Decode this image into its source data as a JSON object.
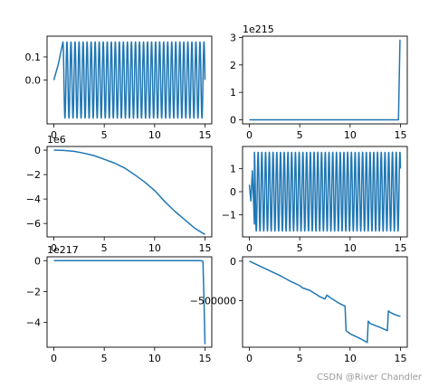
{
  "watermark": "CSDN @River Chandler",
  "colors": {
    "line": "#1f77b4"
  },
  "chart_data": [
    {
      "type": "line",
      "id": "p1",
      "pattern": "oscillation",
      "x_range": [
        0,
        15
      ],
      "amplitude": 0.165,
      "center": 0.0,
      "cycles_per_unit": 2.5,
      "series": [
        {
          "x": [
            0,
            0.45,
            0.9,
            15
          ],
          "y": [
            0.0,
            0.07,
            0.165,
            0.03
          ]
        }
      ],
      "xticks": [
        "0",
        "5",
        "10",
        "15"
      ],
      "xtick_values": [
        0,
        5,
        10,
        15
      ],
      "yticks": [
        "0.0",
        "0.1"
      ],
      "ytick_values": [
        0.0,
        0.1
      ],
      "ylim": [
        -0.19,
        0.19
      ],
      "offset_text": ""
    },
    {
      "type": "line",
      "id": "p2",
      "series": [
        {
          "x": [
            0,
            14.8,
            14.95,
            15.0
          ],
          "y": [
            0,
            0,
            2.9,
            2.9
          ]
        }
      ],
      "xticks": [
        "0",
        "5",
        "10",
        "15"
      ],
      "xtick_values": [
        0,
        5,
        10,
        15
      ],
      "yticks": [
        "0",
        "1",
        "2",
        "3"
      ],
      "ytick_values": [
        0,
        1,
        2,
        3
      ],
      "ylim": [
        -0.15,
        3.05
      ],
      "offset_text": "1e215"
    },
    {
      "type": "line",
      "id": "p3",
      "series": [
        {
          "x": [
            0,
            1,
            2,
            3,
            4,
            5,
            6,
            7,
            8,
            9,
            10,
            11,
            12,
            13,
            14,
            15
          ],
          "y": [
            0,
            -0.02,
            -0.1,
            -0.25,
            -0.45,
            -0.75,
            -1.05,
            -1.45,
            -2.0,
            -2.6,
            -3.3,
            -4.2,
            -5.0,
            -5.7,
            -6.4,
            -6.9
          ]
        }
      ],
      "xticks": [
        "0",
        "5",
        "10",
        "15"
      ],
      "xtick_values": [
        0,
        5,
        10,
        15
      ],
      "yticks": [
        "0",
        "−2",
        "−4",
        "−6"
      ],
      "ytick_values": [
        0,
        -2,
        -4,
        -6
      ],
      "ylim": [
        -7.1,
        0.3
      ],
      "offset_text": "1e6"
    },
    {
      "type": "line",
      "id": "p4",
      "pattern": "oscillation",
      "x_range": [
        0,
        15
      ],
      "amplitude": 1.7,
      "center": 0.0,
      "cycles_per_unit": 2.7,
      "series": [
        {
          "x": [
            0,
            0.15,
            0.3,
            0.5,
            15
          ],
          "y": [
            0.3,
            -0.4,
            0.9,
            -1.4,
            0.3
          ]
        }
      ],
      "xticks": [
        "0",
        "5",
        "10",
        "15"
      ],
      "xtick_values": [
        0,
        5,
        10,
        15
      ],
      "yticks": [
        "−1",
        "0",
        "1"
      ],
      "ytick_values": [
        -1,
        0,
        1
      ],
      "ylim": [
        -1.95,
        1.95
      ],
      "offset_text": ""
    },
    {
      "type": "line",
      "id": "p5",
      "series": [
        {
          "x": [
            0,
            14.6,
            14.8,
            14.9,
            15.0
          ],
          "y": [
            0,
            0,
            -0.05,
            -2.5,
            -5.4
          ]
        }
      ],
      "xticks": [
        "0",
        "5",
        "10",
        "15"
      ],
      "xtick_values": [
        0,
        5,
        10,
        15
      ],
      "yticks": [
        "0",
        "−2",
        "−4"
      ],
      "ytick_values": [
        0,
        -2,
        -4
      ],
      "ylim": [
        -5.6,
        0.25
      ],
      "offset_text": "1e217"
    },
    {
      "type": "line",
      "id": "p6",
      "series": [
        {
          "x": [
            0,
            1,
            2,
            3,
            4,
            5,
            5.3,
            6,
            7,
            7.5,
            7.7,
            8,
            9,
            9.5,
            9.6,
            10,
            11,
            11.7,
            11.8,
            12,
            13,
            13.7,
            13.8,
            14,
            14.5,
            15
          ],
          "y": [
            0,
            -60000,
            -120000,
            -180000,
            -250000,
            -310000,
            -340000,
            -370000,
            -450000,
            -480000,
            -430000,
            -460000,
            -540000,
            -570000,
            -880000,
            -920000,
            -980000,
            -1030000,
            -760000,
            -790000,
            -840000,
            -880000,
            -630000,
            -650000,
            -680000,
            -700000
          ]
        }
      ],
      "xticks": [
        "0",
        "5",
        "10",
        "15"
      ],
      "xtick_values": [
        0,
        5,
        10,
        15
      ],
      "yticks": [
        "0",
        "−500000"
      ],
      "ytick_values": [
        0,
        -500000
      ],
      "ylim": [
        -1090000,
        55000
      ],
      "offset_text": ""
    }
  ]
}
